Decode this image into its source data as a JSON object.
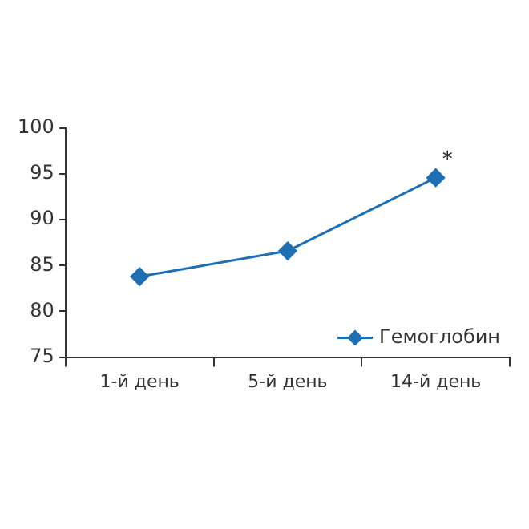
{
  "chart_data": {
    "type": "line",
    "categories": [
      "1-й день",
      "5-й день",
      "14-й день"
    ],
    "series": [
      {
        "name": "Гемоглобин",
        "color": "#1f6fb5",
        "values": [
          83.8,
          86.6,
          94.6
        ]
      }
    ],
    "ylim": [
      75,
      100
    ],
    "yticks": [
      75,
      80,
      85,
      90,
      95,
      100
    ],
    "grid": false,
    "legend": "bottom right",
    "marker": "diamond",
    "line_style": "solid",
    "annotations": [
      {
        "text": "*",
        "x": "14-й день",
        "y": 94.6
      }
    ]
  }
}
